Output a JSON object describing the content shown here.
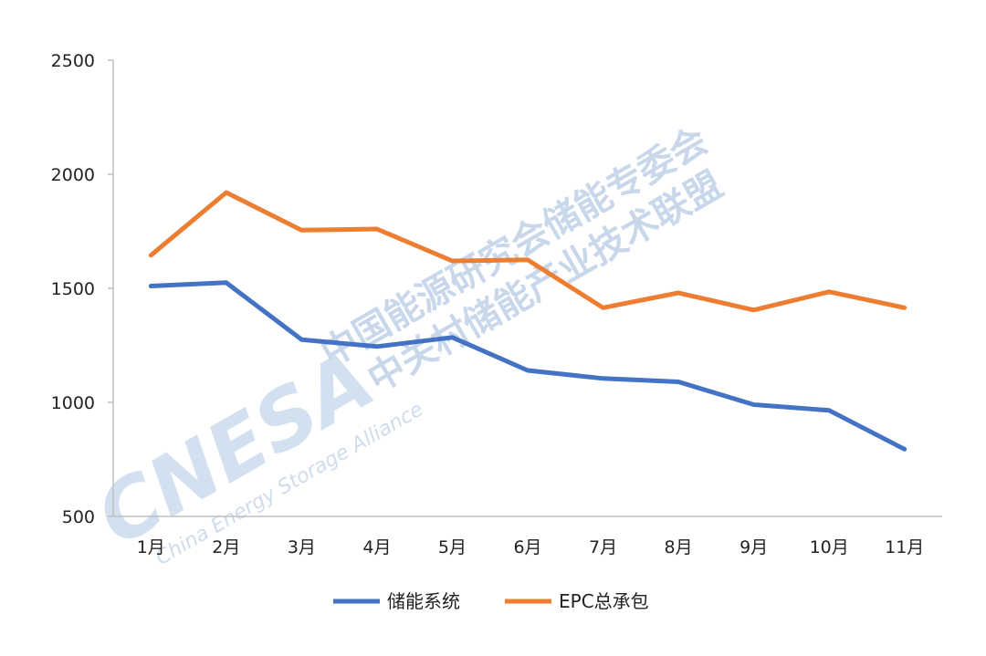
{
  "chart_data": {
    "type": "line",
    "categories": [
      "1月",
      "2月",
      "3月",
      "4月",
      "5月",
      "6月",
      "7月",
      "8月",
      "9月",
      "10月",
      "11月"
    ],
    "series": [
      {
        "name": "储能系统",
        "color": "#4472c4",
        "values": [
          1510,
          1525,
          1275,
          1245,
          1285,
          1140,
          1105,
          1090,
          990,
          965,
          795
        ]
      },
      {
        "name": "EPC总承包",
        "color": "#ed7d31",
        "values": [
          1645,
          1920,
          1755,
          1760,
          1620,
          1625,
          1415,
          1480,
          1405,
          1485,
          1415
        ]
      }
    ],
    "y_ticks": [
      "500",
      "1000",
      "1500",
      "2000",
      "2500"
    ],
    "ylim": [
      500,
      2500
    ],
    "grid": false,
    "legend_position": "bottom"
  },
  "watermark": {
    "logo": "CNESA",
    "subtitle": "China Energy Storage Alliance",
    "line1": "中国能源研究会储能专委会",
    "line2": "中关村储能产业技术联盟"
  }
}
